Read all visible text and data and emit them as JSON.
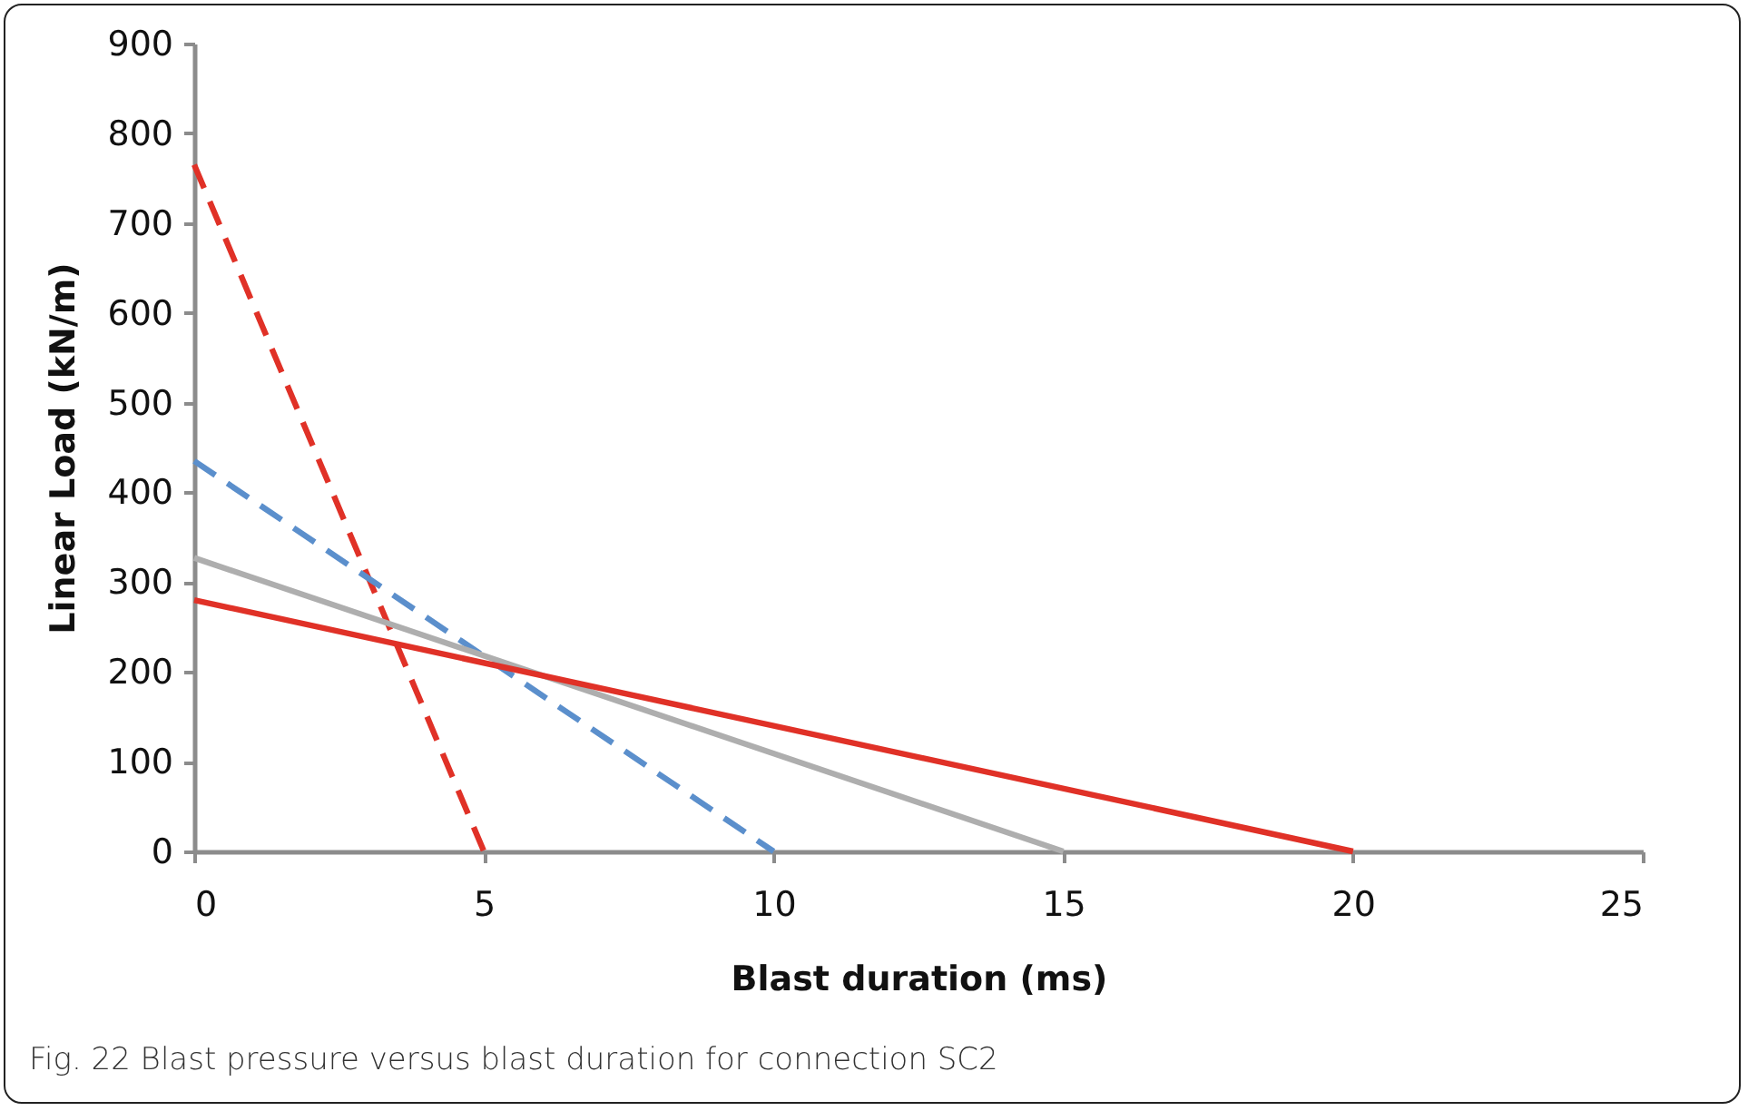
{
  "chart_data": {
    "type": "line",
    "xlabel": "Blast duration (ms)",
    "ylabel": "Linear Load  (kN/m)",
    "annotations": [
      "Fig. 22 Blast pressure versus blast duration for connection SC2"
    ],
    "series": [
      {
        "color": "#e03127",
        "line_style": "dashed",
        "x": [
          0,
          5
        ],
        "values": [
          765,
          0
        ]
      },
      {
        "color": "#5b8fcc",
        "line_style": "dashed",
        "x": [
          0,
          10
        ],
        "values": [
          435,
          0
        ]
      },
      {
        "color": "#aeaeae",
        "line_style": "solid",
        "x": [
          0,
          15
        ],
        "values": [
          327,
          0
        ]
      },
      {
        "color": "#e03127",
        "line_style": "solid",
        "x": [
          0,
          20
        ],
        "values": [
          280,
          0
        ]
      }
    ],
    "xlim": [
      0,
      25
    ],
    "xticks": [
      0,
      5,
      10,
      15,
      20,
      25
    ],
    "ylim": [
      0,
      900
    ],
    "yticks": [
      0,
      100,
      200,
      300,
      400,
      500,
      600,
      700,
      800,
      900
    ],
    "grid": false,
    "marker": "none"
  }
}
